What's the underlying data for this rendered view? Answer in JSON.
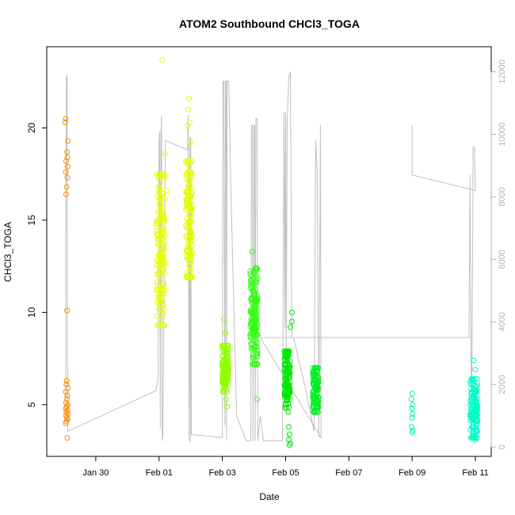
{
  "chart_data": {
    "type": "scatter",
    "title": "ATOM2 Southbound CHCl3_TOGA",
    "xlabel": "Date",
    "ylabel": "CHCl3_TOGA",
    "x_ticks": [
      "Jan 30",
      "Feb 01",
      "Feb 03",
      "Feb 05",
      "Feb 07",
      "Feb 09",
      "Feb 11"
    ],
    "x_tick_values": [
      1.0,
      3.0,
      5.0,
      7.0,
      9.0,
      11.0,
      13.0
    ],
    "xlim": [
      -0.55,
      13.5
    ],
    "y_ticks": [
      "5",
      "10",
      "15",
      "20"
    ],
    "y_tick_values": [
      5,
      10,
      15,
      20
    ],
    "ylim": [
      2.2,
      24.4
    ],
    "y2_ticks": [
      "0",
      "2000",
      "4000",
      "6000",
      "8000",
      "10000",
      "12000"
    ],
    "y2_tick_values": [
      0,
      2000,
      4000,
      6000,
      8000,
      10000,
      12000
    ],
    "y2lim": [
      -300,
      12800
    ],
    "grid": false,
    "legend": "none",
    "colors": {
      "axis": "#000000",
      "secondary_axis": "#b3b3b3",
      "altitude_line": "#c0c0c0",
      "orange": "#ff8c00",
      "yellow": "#e6ff00",
      "yellow_green": "#b8ff00",
      "green": "#00e600",
      "green2": "#00f020",
      "cyan": "#00ffc8"
    },
    "point_groups": [
      {
        "x_center": 0.08,
        "x_spread": 0.04,
        "color": "#ff8c00",
        "points": [
          [
            0.05,
            20.5
          ],
          [
            0.03,
            20.3
          ],
          [
            0.12,
            19.3
          ],
          [
            0.09,
            18.7
          ],
          [
            0.1,
            18.4
          ],
          [
            0.06,
            18.2
          ],
          [
            0.11,
            17.9
          ],
          [
            0.05,
            17.6
          ],
          [
            0.1,
            17.3
          ],
          [
            0.08,
            16.8
          ],
          [
            0.06,
            16.4
          ],
          [
            0.09,
            10.1
          ],
          [
            0.08,
            6.3
          ],
          [
            0.07,
            6.1
          ],
          [
            0.12,
            5.9
          ],
          [
            0.05,
            5.7
          ],
          [
            0.1,
            5.5
          ],
          [
            0.09,
            5.3
          ],
          [
            0.06,
            5.1
          ],
          [
            0.11,
            5.0
          ],
          [
            0.08,
            4.9
          ],
          [
            0.05,
            4.8
          ],
          [
            0.1,
            4.7
          ],
          [
            0.07,
            4.6
          ],
          [
            0.12,
            4.5
          ],
          [
            0.06,
            4.4
          ],
          [
            0.09,
            4.3
          ],
          [
            0.11,
            4.2
          ],
          [
            0.07,
            4.1
          ],
          [
            0.05,
            4.0
          ],
          [
            0.1,
            3.2
          ]
        ]
      },
      {
        "x_center": 3.05,
        "x_spread": 0.13,
        "color": "#e6ff00",
        "y_min": 9.3,
        "y_max": 17.5,
        "n": 150,
        "extra": [
          [
            3.1,
            23.7
          ],
          [
            3.2,
            18.6
          ],
          [
            3.25,
            16.6
          ],
          [
            3.05,
            9.4
          ]
        ]
      },
      {
        "x_center": 3.95,
        "x_spread": 0.1,
        "color": "#dfff00",
        "y_min": 11.9,
        "y_max": 18.2,
        "n": 140,
        "extra": [
          [
            3.95,
            21.6
          ],
          [
            3.92,
            21.0
          ],
          [
            3.97,
            20.3
          ],
          [
            3.9,
            20.1
          ],
          [
            3.98,
            19.2
          ]
        ]
      },
      {
        "x_center": 5.1,
        "x_spread": 0.1,
        "color": "#90ff00",
        "y_min": 5.7,
        "y_max": 8.2,
        "n": 120,
        "extra": [
          [
            5.05,
            9.6
          ],
          [
            5.1,
            8.9
          ],
          [
            5.12,
            5.3
          ],
          [
            5.15,
            4.9
          ]
        ]
      },
      {
        "x_center": 6.0,
        "x_spread": 0.12,
        "color": "#30ff10",
        "y_min": 7.2,
        "y_max": 12.4,
        "n": 140,
        "extra": [
          [
            5.95,
            13.3
          ],
          [
            6.1,
            5.3
          ]
        ]
      },
      {
        "x_center": 7.05,
        "x_spread": 0.09,
        "color": "#00e600",
        "y_min": 4.6,
        "y_max": 7.9,
        "n": 120,
        "extra": [
          [
            7.2,
            10.0
          ],
          [
            7.2,
            9.5
          ],
          [
            7.15,
            9.2
          ],
          [
            7.1,
            3.8
          ],
          [
            7.12,
            3.4
          ],
          [
            7.1,
            3.1
          ],
          [
            7.15,
            2.9
          ],
          [
            7.12,
            2.8
          ]
        ]
      },
      {
        "x_center": 7.95,
        "x_spread": 0.09,
        "color": "#00f020",
        "y_min": 4.6,
        "y_max": 7.0,
        "n": 110,
        "extra": []
      },
      {
        "x_center": 11.0,
        "x_spread": 0.03,
        "color": "#00f5a0",
        "points": [
          [
            11.0,
            5.6
          ],
          [
            10.98,
            5.3
          ],
          [
            11.02,
            5.0
          ],
          [
            10.99,
            4.8
          ],
          [
            11.01,
            4.5
          ],
          [
            11.0,
            4.3
          ],
          [
            10.98,
            3.8
          ],
          [
            11.02,
            3.6
          ],
          [
            11.0,
            3.5
          ]
        ]
      },
      {
        "x_center": 12.95,
        "x_spread": 0.12,
        "color": "#00ffc8",
        "y_min": 3.2,
        "y_max": 6.4,
        "n": 130,
        "extra": [
          [
            12.95,
            7.4
          ],
          [
            13.0,
            6.9
          ],
          [
            12.9,
            3.3
          ],
          [
            13.0,
            3.1
          ]
        ]
      }
    ],
    "altitude_path": [
      [
        0.05,
        1500
      ],
      [
        0.05,
        6000
      ],
      [
        0.07,
        11800
      ],
      [
        0.09,
        11900
      ],
      [
        0.1,
        4000
      ],
      [
        0.11,
        500
      ],
      [
        2.9,
        1800
      ],
      [
        2.97,
        2200
      ],
      [
        3.0,
        9700
      ],
      [
        3.02,
        10100
      ],
      [
        3.04,
        600
      ],
      [
        3.06,
        9900
      ],
      [
        3.08,
        10600
      ],
      [
        3.1,
        200
      ],
      [
        3.12,
        400
      ],
      [
        3.2,
        9800
      ],
      [
        3.9,
        9500
      ],
      [
        3.92,
        10600
      ],
      [
        3.95,
        200
      ],
      [
        3.97,
        9900
      ],
      [
        3.99,
        150
      ],
      [
        4.0,
        9900
      ],
      [
        4.02,
        400
      ],
      [
        5.0,
        300
      ],
      [
        5.02,
        11700
      ],
      [
        5.05,
        11700
      ],
      [
        5.08,
        700
      ],
      [
        5.1,
        11700
      ],
      [
        5.12,
        11700
      ],
      [
        5.13,
        200
      ],
      [
        5.15,
        11700
      ],
      [
        5.2,
        11700
      ],
      [
        5.25,
        9400
      ],
      [
        5.27,
        8200
      ],
      [
        5.45,
        1000
      ],
      [
        5.75,
        200
      ],
      [
        5.9,
        200
      ],
      [
        5.92,
        10300
      ],
      [
        5.95,
        10300
      ],
      [
        5.97,
        200
      ],
      [
        6.0,
        10300
      ],
      [
        6.02,
        10300
      ],
      [
        6.04,
        200
      ],
      [
        6.06,
        10500
      ],
      [
        6.1,
        10500
      ],
      [
        6.12,
        200
      ],
      [
        6.2,
        1000
      ],
      [
        6.3,
        200
      ],
      [
        6.9,
        200
      ],
      [
        6.95,
        10700
      ],
      [
        6.98,
        3800
      ],
      [
        7.0,
        10700
      ],
      [
        7.02,
        3000
      ],
      [
        7.05,
        10500
      ],
      [
        7.1,
        11800
      ],
      [
        7.15,
        12000
      ],
      [
        7.2,
        3500
      ],
      [
        7.25,
        3500
      ],
      [
        7.6,
        2000
      ],
      [
        7.9,
        500
      ],
      [
        7.95,
        9800
      ],
      [
        8.0,
        8800
      ],
      [
        8.05,
        300
      ],
      [
        8.1,
        10300
      ],
      [
        8.12,
        300
      ],
      [
        6.2,
        3500
      ],
      [
        7.5,
        3500
      ],
      [
        9.0,
        3500
      ],
      [
        10.5,
        3500
      ],
      [
        12.8,
        3500
      ],
      [
        12.83,
        8700
      ],
      [
        12.88,
        300
      ],
      [
        12.93,
        9600
      ],
      [
        12.97,
        9600
      ],
      [
        13.0,
        8200
      ],
      [
        11.0,
        8700
      ],
      [
        11.0,
        10300
      ]
    ]
  }
}
